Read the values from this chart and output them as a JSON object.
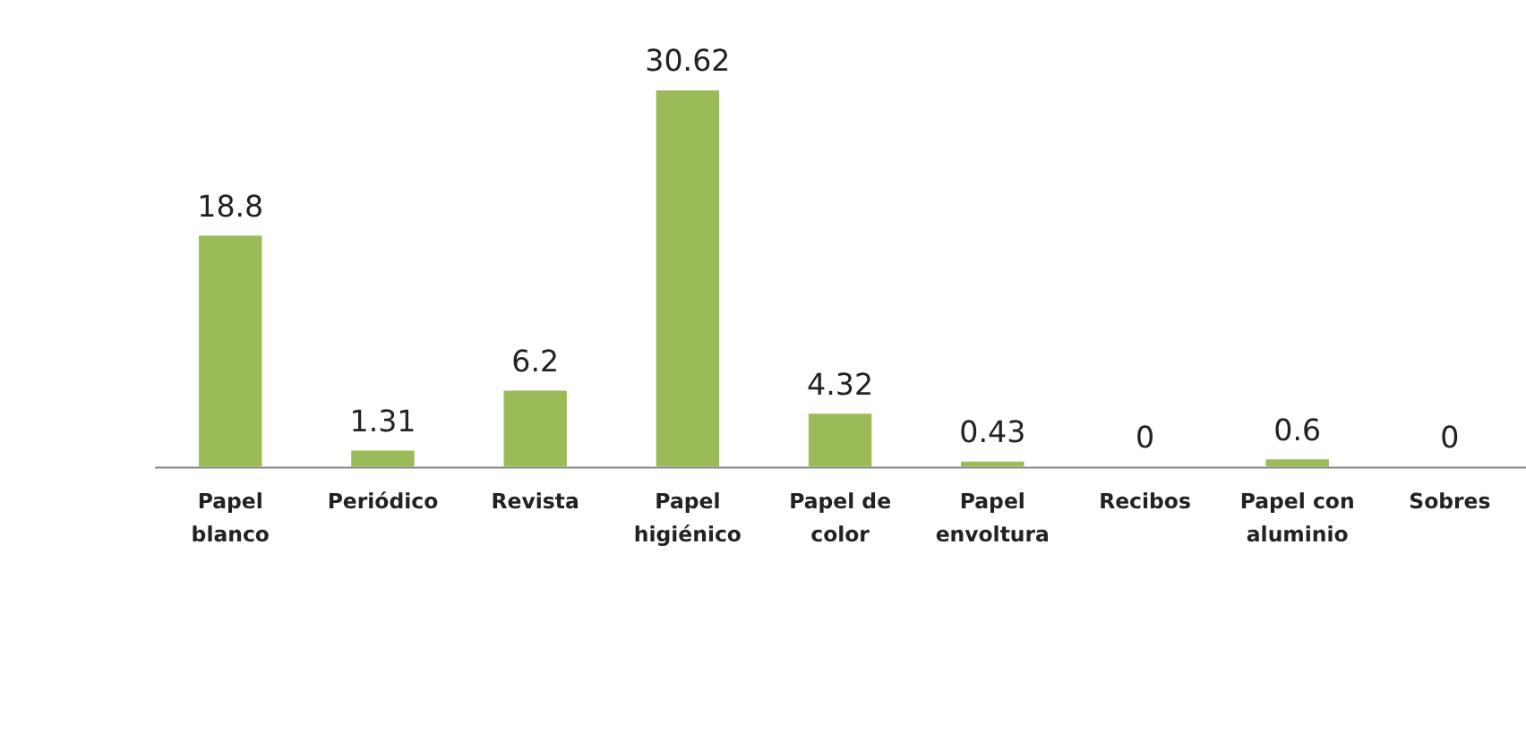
{
  "chart_data": {
    "type": "bar",
    "categories": [
      "Papel blanco",
      "Periódico",
      "Revista",
      "Papel higiénico",
      "Papel de color",
      "Papel envoltura",
      "Recibos",
      "Papel con aluminio",
      "Sobres"
    ],
    "values": [
      18.8,
      1.31,
      6.2,
      30.62,
      4.32,
      0.43,
      0,
      0.6,
      0
    ],
    "color": "#9bbb59",
    "data_labels": true
  }
}
